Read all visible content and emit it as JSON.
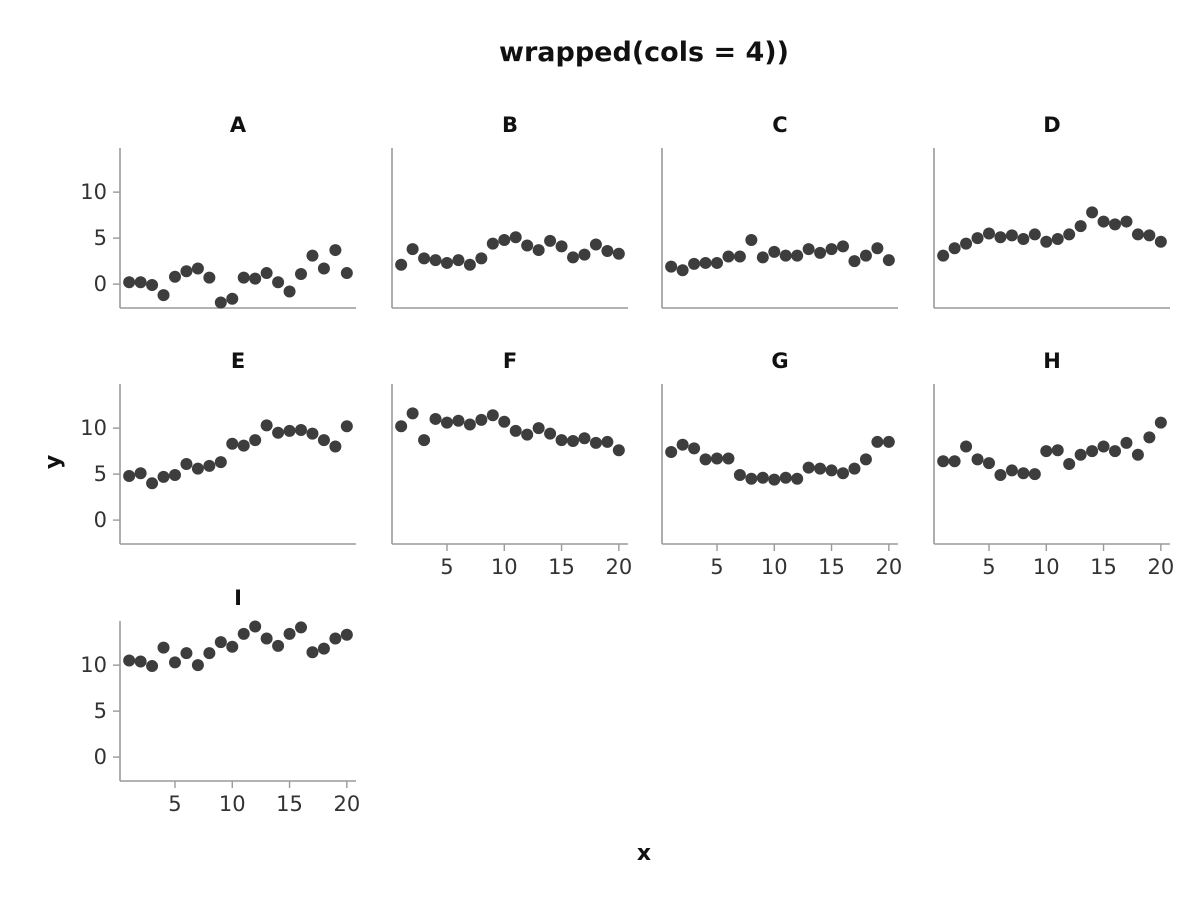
{
  "chart_data": {
    "type": "scatter",
    "title": "wrapped(cols = 4))",
    "xlabel": "x",
    "ylabel": "y",
    "xlim": [
      0.2,
      20.8
    ],
    "ylim": [
      -2.6,
      14.8
    ],
    "x_ticks": [
      5,
      10,
      15,
      20
    ],
    "y_ticks": [
      0,
      5,
      10
    ],
    "grid": false,
    "legend": "none",
    "columns": 4,
    "point_color": "#3d3d3d",
    "axis_color": "#9a9a9a",
    "x": [
      1,
      2,
      3,
      4,
      5,
      6,
      7,
      8,
      9,
      10,
      11,
      12,
      13,
      14,
      15,
      16,
      17,
      18,
      19,
      20
    ],
    "panels": [
      {
        "label": "A",
        "y": [
          0.2,
          0.2,
          -0.1,
          -1.2,
          0.8,
          1.4,
          1.7,
          0.7,
          -2.0,
          -1.6,
          0.7,
          0.6,
          1.2,
          0.2,
          -0.8,
          1.1,
          3.1,
          1.7,
          3.7,
          1.2
        ]
      },
      {
        "label": "B",
        "y": [
          2.1,
          3.8,
          2.8,
          2.6,
          2.3,
          2.6,
          2.1,
          2.8,
          4.4,
          4.8,
          5.1,
          4.2,
          3.7,
          4.7,
          4.1,
          2.9,
          3.2,
          4.3,
          3.6,
          3.3
        ]
      },
      {
        "label": "C",
        "y": [
          1.9,
          1.5,
          2.2,
          2.3,
          2.3,
          3.0,
          3.0,
          4.8,
          2.9,
          3.5,
          3.1,
          3.1,
          3.8,
          3.4,
          3.8,
          4.1,
          2.5,
          3.1,
          3.9,
          2.6
        ]
      },
      {
        "label": "D",
        "y": [
          3.1,
          3.9,
          4.4,
          5.0,
          5.5,
          5.1,
          5.3,
          4.9,
          5.4,
          4.6,
          4.9,
          5.4,
          6.3,
          7.8,
          6.8,
          6.5,
          6.8,
          5.4,
          5.3,
          4.6
        ]
      },
      {
        "label": "E",
        "y": [
          4.8,
          5.1,
          4.0,
          4.7,
          4.9,
          6.1,
          5.6,
          5.9,
          6.3,
          8.3,
          8.1,
          8.7,
          10.3,
          9.5,
          9.7,
          9.8,
          9.4,
          8.7,
          8.0,
          10.2
        ]
      },
      {
        "label": "F",
        "y": [
          10.2,
          11.6,
          8.7,
          11.0,
          10.6,
          10.8,
          10.4,
          10.9,
          11.4,
          10.7,
          9.7,
          9.3,
          10.0,
          9.4,
          8.7,
          8.6,
          8.9,
          8.4,
          8.5,
          7.6
        ]
      },
      {
        "label": "G",
        "y": [
          7.4,
          8.2,
          7.8,
          6.6,
          6.7,
          6.7,
          4.9,
          4.5,
          4.6,
          4.4,
          4.6,
          4.5,
          5.7,
          5.6,
          5.4,
          5.1,
          5.6,
          6.6,
          8.5,
          8.5
        ]
      },
      {
        "label": "H",
        "y": [
          6.4,
          6.4,
          8.0,
          6.6,
          6.2,
          4.9,
          5.4,
          5.1,
          5.0,
          7.5,
          7.6,
          6.1,
          7.1,
          7.5,
          8.0,
          7.5,
          8.4,
          7.1,
          9.0,
          10.6
        ]
      },
      {
        "label": "I",
        "y": [
          10.5,
          10.4,
          9.9,
          11.9,
          10.3,
          11.3,
          10.0,
          11.3,
          12.5,
          12.0,
          13.4,
          14.2,
          12.9,
          12.1,
          13.4,
          14.1,
          11.4,
          11.8,
          12.9,
          13.3
        ]
      }
    ]
  }
}
